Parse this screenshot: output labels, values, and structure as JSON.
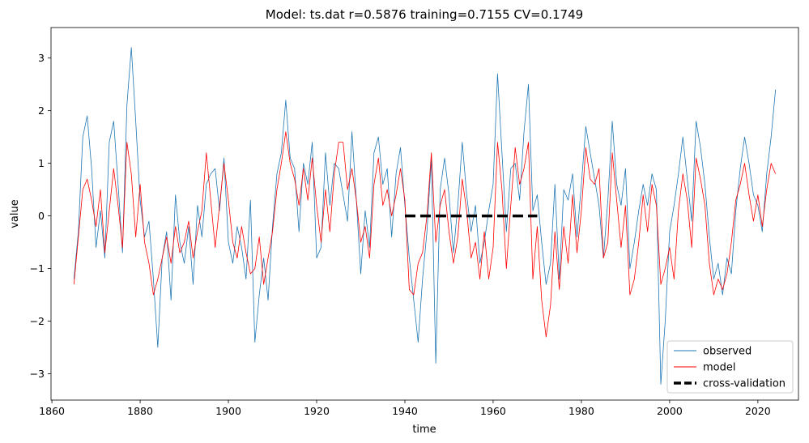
{
  "chart_data": {
    "type": "line",
    "title": "Model: ts.dat  r=0.5876  training=0.7155  CV=0.1749",
    "xlabel": "time",
    "ylabel": "value",
    "xlim": [
      1859.8,
      2029.2
    ],
    "ylim": [
      -3.5,
      3.58
    ],
    "x_ticks": [
      1860,
      1880,
      1900,
      1920,
      1940,
      1960,
      1980,
      2000,
      2020
    ],
    "y_ticks": [
      -3,
      -2,
      -1,
      0,
      1,
      2,
      3
    ],
    "x_tick_labels": [
      "1860",
      "1880",
      "1900",
      "1920",
      "1940",
      "1960",
      "1980",
      "2000",
      "2020"
    ],
    "y_tick_labels": [
      "−3",
      "−2",
      "−1",
      "0",
      "1",
      "2",
      "3"
    ],
    "grid": false,
    "legend_position": "lower-right",
    "series": [
      {
        "name": "observed",
        "color": "#1f77b4",
        "style": "solid",
        "x": [
          1865.0,
          1866.0,
          1867.0,
          1868.0,
          1869.0,
          1870.0,
          1871.0,
          1872.0,
          1873.0,
          1874.0,
          1875.0,
          1876.0,
          1877.0,
          1878.0,
          1879.0,
          1880.0,
          1881.0,
          1882.0,
          1883.0,
          1884.0,
          1885.0,
          1886.0,
          1887.0,
          1888.0,
          1889.0,
          1890.0,
          1891.0,
          1892.0,
          1893.0,
          1894.0,
          1895.0,
          1896.0,
          1897.0,
          1898.0,
          1899.0,
          1900.0,
          1901.0,
          1902.0,
          1903.0,
          1904.0,
          1905.0,
          1906.0,
          1907.0,
          1908.0,
          1909.0,
          1910.0,
          1911.0,
          1912.0,
          1913.0,
          1914.0,
          1915.0,
          1916.0,
          1917.0,
          1918.0,
          1919.0,
          1920.0,
          1921.0,
          1922.0,
          1923.0,
          1924.0,
          1925.0,
          1926.0,
          1927.0,
          1928.0,
          1929.0,
          1930.0,
          1931.0,
          1932.0,
          1933.0,
          1934.0,
          1935.0,
          1936.0,
          1937.0,
          1938.0,
          1939.0,
          1940.0,
          1941.0,
          1942.0,
          1943.0,
          1944.0,
          1945.0,
          1946.0,
          1947.0,
          1948.0,
          1949.0,
          1950.0,
          1951.0,
          1952.0,
          1953.0,
          1954.0,
          1955.0,
          1956.0,
          1957.0,
          1958.0,
          1959.0,
          1960.0,
          1961.0,
          1962.0,
          1963.0,
          1964.0,
          1965.0,
          1966.0,
          1967.0,
          1968.0,
          1969.0,
          1970.0,
          1971.0,
          1972.0,
          1973.0,
          1974.0,
          1975.0,
          1976.0,
          1977.0,
          1978.0,
          1979.0,
          1980.0,
          1981.0,
          1982.0,
          1983.0,
          1984.0,
          1985.0,
          1986.0,
          1987.0,
          1988.0,
          1989.0,
          1990.0,
          1991.0,
          1992.0,
          1993.0,
          1994.0,
          1995.0,
          1996.0,
          1997.0,
          1998.0,
          1999.0,
          2000.0,
          2001.0,
          2002.0,
          2003.0,
          2004.0,
          2005.0,
          2006.0,
          2007.0,
          2008.0,
          2009.0,
          2010.0,
          2011.0,
          2012.0,
          2013.0,
          2014.0,
          2015.0,
          2016.0,
          2017.0,
          2018.0,
          2019.0,
          2020.0,
          2021.0,
          2022.0,
          2023.0,
          2024.0
        ],
        "y": [
          -1.2,
          -0.3,
          1.5,
          1.9,
          0.9,
          -0.6,
          0.1,
          -0.8,
          1.4,
          1.8,
          0.6,
          -0.7,
          2.1,
          3.2,
          1.8,
          0.3,
          -0.4,
          -0.1,
          -1.2,
          -2.5,
          -0.8,
          -0.3,
          -1.6,
          0.4,
          -0.5,
          -0.9,
          -0.2,
          -1.3,
          0.2,
          -0.4,
          0.6,
          0.8,
          0.9,
          0.1,
          1.1,
          -0.5,
          -0.9,
          -0.2,
          -0.6,
          -1.2,
          0.3,
          -2.4,
          -1.5,
          -0.8,
          -1.6,
          -0.2,
          0.8,
          1.2,
          2.2,
          1.1,
          0.9,
          -0.3,
          1.0,
          0.6,
          1.4,
          -0.8,
          -0.6,
          1.2,
          0.2,
          1.0,
          0.9,
          0.4,
          -0.1,
          1.6,
          0.3,
          -1.1,
          0.1,
          -0.6,
          1.2,
          1.5,
          0.6,
          0.9,
          -0.4,
          0.8,
          1.3,
          0.2,
          -0.8,
          -1.6,
          -2.4,
          -1.2,
          -0.3,
          1.1,
          -2.8,
          0.5,
          1.1,
          0.4,
          -0.7,
          0.2,
          1.4,
          0.4,
          -0.3,
          0.2,
          -0.9,
          -0.5,
          0.1,
          0.6,
          2.7,
          1.2,
          -0.3,
          0.9,
          1.0,
          0.3,
          1.6,
          2.5,
          0.1,
          0.4,
          -0.5,
          -1.3,
          -0.9,
          0.6,
          -1.2,
          0.5,
          0.3,
          0.8,
          -0.4,
          0.6,
          1.7,
          1.2,
          0.7,
          0.2,
          -0.8,
          0.3,
          1.8,
          0.6,
          0.2,
          0.9,
          -1.0,
          -0.5,
          0.1,
          0.6,
          0.2,
          0.8,
          0.5,
          -3.2,
          -2.0,
          -0.3,
          0.2,
          0.8,
          1.5,
          0.7,
          -0.1,
          1.8,
          1.3,
          0.6,
          -0.4,
          -1.2,
          -0.9,
          -1.5,
          -0.8,
          -1.1,
          0.1,
          0.9,
          1.5,
          1.0,
          0.4,
          0.2,
          -0.3,
          0.8,
          1.5,
          2.4
        ]
      },
      {
        "name": "model",
        "color": "#ff0000",
        "style": "solid",
        "x": [
          1865.0,
          1866.0,
          1867.0,
          1868.0,
          1869.0,
          1870.0,
          1871.0,
          1872.0,
          1873.0,
          1874.0,
          1875.0,
          1876.0,
          1877.0,
          1878.0,
          1879.0,
          1880.0,
          1881.0,
          1882.0,
          1883.0,
          1884.0,
          1885.0,
          1886.0,
          1887.0,
          1888.0,
          1889.0,
          1890.0,
          1891.0,
          1892.0,
          1893.0,
          1894.0,
          1895.0,
          1896.0,
          1897.0,
          1898.0,
          1899.0,
          1900.0,
          1901.0,
          1902.0,
          1903.0,
          1904.0,
          1905.0,
          1906.0,
          1907.0,
          1908.0,
          1909.0,
          1910.0,
          1911.0,
          1912.0,
          1913.0,
          1914.0,
          1915.0,
          1916.0,
          1917.0,
          1918.0,
          1919.0,
          1920.0,
          1921.0,
          1922.0,
          1923.0,
          1924.0,
          1925.0,
          1926.0,
          1927.0,
          1928.0,
          1929.0,
          1930.0,
          1931.0,
          1932.0,
          1933.0,
          1934.0,
          1935.0,
          1936.0,
          1937.0,
          1938.0,
          1939.0,
          1940.0,
          1941.0,
          1942.0,
          1943.0,
          1944.0,
          1945.0,
          1946.0,
          1947.0,
          1948.0,
          1949.0,
          1950.0,
          1951.0,
          1952.0,
          1953.0,
          1954.0,
          1955.0,
          1956.0,
          1957.0,
          1958.0,
          1959.0,
          1960.0,
          1961.0,
          1962.0,
          1963.0,
          1964.0,
          1965.0,
          1966.0,
          1967.0,
          1968.0,
          1969.0,
          1970.0,
          1971.0,
          1972.0,
          1973.0,
          1974.0,
          1975.0,
          1976.0,
          1977.0,
          1978.0,
          1979.0,
          1980.0,
          1981.0,
          1982.0,
          1983.0,
          1984.0,
          1985.0,
          1986.0,
          1987.0,
          1988.0,
          1989.0,
          1990.0,
          1991.0,
          1992.0,
          1993.0,
          1994.0,
          1995.0,
          1996.0,
          1997.0,
          1998.0,
          1999.0,
          2000.0,
          2001.0,
          2002.0,
          2003.0,
          2004.0,
          2005.0,
          2006.0,
          2007.0,
          2008.0,
          2009.0,
          2010.0,
          2011.0,
          2012.0,
          2013.0,
          2014.0,
          2015.0,
          2016.0,
          2017.0,
          2018.0,
          2019.0,
          2020.0,
          2021.0,
          2022.0,
          2023.0,
          2024.0
        ],
        "y": [
          -1.3,
          -0.4,
          0.5,
          0.7,
          0.3,
          -0.2,
          0.5,
          -0.7,
          0.1,
          0.9,
          0.2,
          -0.6,
          1.4,
          0.8,
          -0.4,
          0.6,
          -0.5,
          -0.9,
          -1.5,
          -1.2,
          -0.8,
          -0.4,
          -0.9,
          -0.2,
          -0.7,
          -0.5,
          -0.1,
          -0.8,
          -0.3,
          0.1,
          1.2,
          0.3,
          -0.6,
          0.2,
          1.0,
          0.3,
          -0.5,
          -0.8,
          -0.2,
          -0.7,
          -1.1,
          -1.0,
          -0.4,
          -1.3,
          -0.8,
          -0.3,
          0.5,
          1.0,
          1.6,
          1.0,
          0.7,
          0.2,
          0.9,
          0.3,
          1.1,
          0.2,
          -0.5,
          0.5,
          -0.3,
          0.8,
          1.4,
          1.4,
          0.5,
          0.9,
          0.3,
          -0.5,
          -0.2,
          -0.8,
          0.6,
          1.1,
          0.2,
          0.5,
          0.0,
          0.4,
          0.9,
          0.3,
          -1.4,
          -1.5,
          -0.9,
          -0.7,
          0.0,
          1.2,
          -0.5,
          0.2,
          0.5,
          -0.3,
          -0.9,
          -0.4,
          0.7,
          0.1,
          -0.8,
          -0.5,
          -1.2,
          -0.3,
          -1.2,
          -0.6,
          1.4,
          0.5,
          -1.0,
          0.2,
          1.3,
          0.6,
          0.9,
          1.4,
          -1.2,
          -0.2,
          -1.6,
          -2.3,
          -1.7,
          -0.3,
          -1.4,
          -0.2,
          -0.9,
          0.4,
          -0.7,
          0.1,
          1.3,
          0.7,
          0.6,
          0.9,
          -0.8,
          -0.5,
          1.2,
          0.3,
          -0.6,
          0.2,
          -1.5,
          -1.2,
          -0.5,
          0.4,
          -0.3,
          0.6,
          0.2,
          -1.3,
          -1.0,
          -0.6,
          -1.2,
          0.1,
          0.8,
          0.3,
          -0.6,
          1.1,
          0.7,
          0.2,
          -0.9,
          -1.5,
          -1.2,
          -1.4,
          -1.1,
          -0.5,
          0.3,
          0.6,
          1.0,
          0.4,
          -0.1,
          0.4,
          -0.2,
          0.5,
          1.0,
          0.8
        ]
      },
      {
        "name": "cross-validation",
        "color": "#000000",
        "style": "dashed",
        "x": [
          1940,
          1970
        ],
        "y": [
          0,
          0
        ]
      }
    ]
  }
}
